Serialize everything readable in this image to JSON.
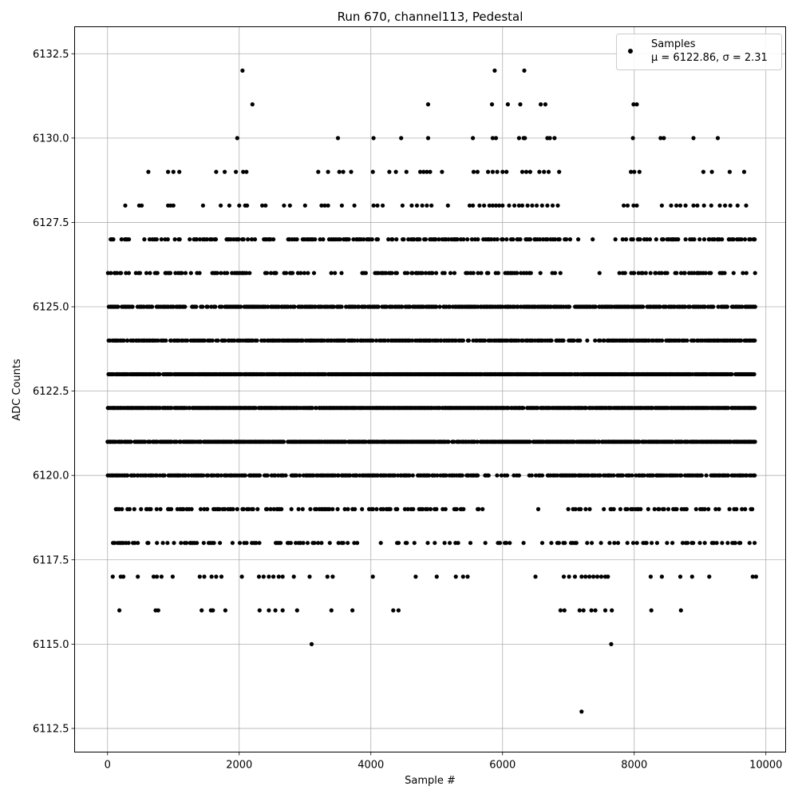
{
  "chart_data": {
    "type": "scatter",
    "title": "Run 670, channel113, Pedestal",
    "xlabel": "Sample #",
    "ylabel": "ADC Counts",
    "xlim": [
      -500,
      10300
    ],
    "ylim": [
      6111.8,
      6133.3
    ],
    "x_ticks": [
      0,
      2000,
      4000,
      6000,
      8000,
      10000
    ],
    "x_tick_labels": [
      "0",
      "2000",
      "4000",
      "6000",
      "8000",
      "10000"
    ],
    "y_ticks": [
      6112.5,
      6115.0,
      6117.5,
      6120.0,
      6122.5,
      6125.0,
      6127.5,
      6130.0,
      6132.5
    ],
    "y_tick_labels": [
      "6112.5",
      "6115.0",
      "6117.5",
      "6120.0",
      "6122.5",
      "6125.0",
      "6127.5",
      "6130.0",
      "6132.5"
    ],
    "grid": true,
    "legend_position": "top-right",
    "marker_color": "#000000",
    "n_samples": 9840,
    "series": [
      {
        "name": "Samples",
        "legend_label": "μ = 6122.86, σ = 2.31",
        "mean": 6122.86,
        "sigma": 2.31,
        "points": [
          [
            3100,
            6115
          ],
          [
            7650,
            6115
          ],
          [
            7200,
            6113
          ],
          [
            2050,
            6132
          ],
          [
            5880,
            6132
          ],
          [
            6330,
            6132
          ],
          [
            2200,
            6131
          ],
          [
            4870,
            6131
          ],
          [
            5840,
            6131
          ],
          [
            6080,
            6131
          ],
          [
            6270,
            6131
          ],
          [
            6580,
            6131
          ],
          [
            6650,
            6131
          ],
          [
            7990,
            6131
          ],
          [
            8040,
            6131
          ],
          [
            1970,
            6130
          ],
          [
            3500,
            6130
          ],
          [
            4040,
            6130
          ],
          [
            4460,
            6130
          ],
          [
            4870,
            6130
          ],
          [
            5550,
            6130
          ],
          [
            5850,
            6130
          ],
          [
            5900,
            6130
          ],
          [
            6250,
            6130
          ],
          [
            6320,
            6130
          ],
          [
            6340,
            6130
          ],
          [
            6680,
            6130
          ],
          [
            6720,
            6130
          ],
          [
            6790,
            6130
          ],
          [
            7980,
            6130
          ],
          [
            8400,
            6130
          ],
          [
            8450,
            6130
          ],
          [
            8900,
            6130
          ],
          [
            9270,
            6130
          ],
          [
            620,
            6129
          ],
          [
            920,
            6129
          ],
          [
            1000,
            6129
          ],
          [
            1090,
            6129
          ],
          [
            1650,
            6129
          ],
          [
            1780,
            6129
          ],
          [
            1950,
            6129
          ],
          [
            2060,
            6129
          ],
          [
            2110,
            6129
          ],
          [
            3200,
            6129
          ],
          [
            3350,
            6129
          ],
          [
            3520,
            6129
          ],
          [
            3580,
            6129
          ],
          [
            3700,
            6129
          ],
          [
            4030,
            6129
          ],
          [
            4280,
            6129
          ],
          [
            4380,
            6129
          ],
          [
            4540,
            6129
          ],
          [
            4750,
            6129
          ],
          [
            4800,
            6129
          ],
          [
            4850,
            6129
          ],
          [
            4900,
            6129
          ],
          [
            5080,
            6129
          ],
          [
            5560,
            6129
          ],
          [
            5620,
            6129
          ],
          [
            5780,
            6129
          ],
          [
            5850,
            6129
          ],
          [
            5920,
            6129
          ],
          [
            6000,
            6129
          ],
          [
            6060,
            6129
          ],
          [
            6300,
            6129
          ],
          [
            6360,
            6129
          ],
          [
            6420,
            6129
          ],
          [
            6560,
            6129
          ],
          [
            6630,
            6129
          ],
          [
            6700,
            6129
          ],
          [
            6860,
            6129
          ],
          [
            7950,
            6129
          ],
          [
            8000,
            6129
          ],
          [
            8080,
            6129
          ],
          [
            9050,
            6129
          ],
          [
            9180,
            6129
          ],
          [
            9450,
            6129
          ],
          [
            9670,
            6129
          ],
          [
            270,
            6128
          ],
          [
            480,
            6128
          ],
          [
            520,
            6128
          ],
          [
            920,
            6128
          ],
          [
            960,
            6128
          ],
          [
            1000,
            6128
          ],
          [
            1450,
            6128
          ],
          [
            1720,
            6128
          ],
          [
            1850,
            6128
          ],
          [
            2000,
            6128
          ],
          [
            2090,
            6128
          ],
          [
            2120,
            6128
          ],
          [
            2350,
            6128
          ],
          [
            2400,
            6128
          ],
          [
            2680,
            6128
          ],
          [
            2770,
            6128
          ],
          [
            3000,
            6128
          ],
          [
            3250,
            6128
          ],
          [
            3300,
            6128
          ],
          [
            3350,
            6128
          ],
          [
            3560,
            6128
          ],
          [
            3750,
            6128
          ],
          [
            4040,
            6128
          ],
          [
            4100,
            6128
          ],
          [
            4180,
            6128
          ],
          [
            4480,
            6128
          ],
          [
            4620,
            6128
          ],
          [
            4700,
            6128
          ],
          [
            4780,
            6128
          ],
          [
            4850,
            6128
          ],
          [
            4920,
            6128
          ],
          [
            5170,
            6128
          ],
          [
            5500,
            6128
          ],
          [
            5550,
            6128
          ],
          [
            5650,
            6128
          ],
          [
            5720,
            6128
          ],
          [
            5800,
            6128
          ],
          [
            5850,
            6128
          ],
          [
            5900,
            6128
          ],
          [
            5950,
            6128
          ],
          [
            6000,
            6128
          ],
          [
            6100,
            6128
          ],
          [
            6180,
            6128
          ],
          [
            6250,
            6128
          ],
          [
            6300,
            6128
          ],
          [
            6380,
            6128
          ],
          [
            6450,
            6128
          ],
          [
            6520,
            6128
          ],
          [
            6600,
            6128
          ],
          [
            6680,
            6128
          ],
          [
            6760,
            6128
          ],
          [
            6840,
            6128
          ],
          [
            7840,
            6128
          ],
          [
            7900,
            6128
          ],
          [
            7990,
            6128
          ],
          [
            8040,
            6128
          ],
          [
            8420,
            6128
          ],
          [
            8560,
            6128
          ],
          [
            8640,
            6128
          ],
          [
            8700,
            6128
          ],
          [
            8780,
            6128
          ],
          [
            8900,
            6128
          ],
          [
            8960,
            6128
          ],
          [
            9060,
            6128
          ],
          [
            9170,
            6128
          ],
          [
            9300,
            6128
          ],
          [
            9380,
            6128
          ],
          [
            9460,
            6128
          ],
          [
            9570,
            6128
          ],
          [
            9700,
            6128
          ],
          [
            7200,
            6117
          ],
          [
            7260,
            6117
          ],
          [
            7320,
            6117
          ],
          [
            7380,
            6117
          ],
          [
            7440,
            6117
          ],
          [
            7500,
            6117
          ],
          [
            7560,
            6117
          ],
          [
            7600,
            6117
          ],
          [
            6930,
            6117
          ],
          [
            7010,
            6117
          ],
          [
            7100,
            6117
          ],
          [
            6500,
            6117
          ],
          [
            8250,
            6117
          ],
          [
            8420,
            6117
          ],
          [
            8700,
            6117
          ],
          [
            8880,
            6117
          ],
          [
            9140,
            6117
          ],
          [
            9800,
            6117
          ],
          [
            9850,
            6117
          ],
          [
            80,
            6117
          ],
          [
            200,
            6117
          ],
          [
            240,
            6117
          ],
          [
            460,
            6117
          ],
          [
            700,
            6117
          ],
          [
            750,
            6117
          ],
          [
            820,
            6117
          ],
          [
            990,
            6117
          ],
          [
            1400,
            6117
          ],
          [
            1470,
            6117
          ],
          [
            1580,
            6117
          ],
          [
            1650,
            6117
          ],
          [
            1730,
            6117
          ],
          [
            2040,
            6117
          ],
          [
            2300,
            6117
          ],
          [
            2370,
            6117
          ],
          [
            2450,
            6117
          ],
          [
            2520,
            6117
          ],
          [
            2600,
            6117
          ],
          [
            2660,
            6117
          ],
          [
            2830,
            6117
          ],
          [
            3070,
            6117
          ],
          [
            3340,
            6117
          ],
          [
            3420,
            6117
          ],
          [
            4030,
            6117
          ],
          [
            4680,
            6117
          ],
          [
            5000,
            6117
          ],
          [
            5290,
            6117
          ],
          [
            5400,
            6117
          ],
          [
            5470,
            6117
          ],
          [
            180,
            6116
          ],
          [
            730,
            6116
          ],
          [
            770,
            6116
          ],
          [
            1430,
            6116
          ],
          [
            1570,
            6116
          ],
          [
            1600,
            6116
          ],
          [
            1790,
            6116
          ],
          [
            2310,
            6116
          ],
          [
            2450,
            6116
          ],
          [
            2550,
            6116
          ],
          [
            2660,
            6116
          ],
          [
            2880,
            6116
          ],
          [
            3400,
            6116
          ],
          [
            3720,
            6116
          ],
          [
            4340,
            6116
          ],
          [
            4420,
            6116
          ],
          [
            6880,
            6116
          ],
          [
            6940,
            6116
          ],
          [
            7170,
            6116
          ],
          [
            7230,
            6116
          ],
          [
            7350,
            6116
          ],
          [
            7410,
            6116
          ],
          [
            7560,
            6116
          ],
          [
            7660,
            6116
          ],
          [
            8260,
            6116
          ],
          [
            8710,
            6116
          ]
        ],
        "dense_rows": [
          {
            "y": 6127,
            "step": 22,
            "start": 40,
            "jitter": 18,
            "keep": 0.5,
            "gap_from": 7100,
            "gap_to": 7700,
            "gap_keep": 0.12
          },
          {
            "y": 6126,
            "step": 22,
            "start": 15,
            "jitter": 18,
            "keep": 0.45,
            "gap_from": 6900,
            "gap_to": 7750,
            "gap_keep": 0.05
          },
          {
            "y": 6125,
            "step": 20,
            "start": 20,
            "jitter": 16,
            "keep": 0.8,
            "gap_from": 99999,
            "gap_to": 99999,
            "gap_keep": 1
          },
          {
            "y": 6124,
            "step": 20,
            "start": 10,
            "jitter": 16,
            "keep": 0.8,
            "gap_from": 7180,
            "gap_to": 7450,
            "gap_keep": 0.25
          },
          {
            "y": 6123,
            "step": 18,
            "start": 0,
            "jitter": 14,
            "keep": 0.95,
            "gap_from": 99999,
            "gap_to": 99999,
            "gap_keep": 1
          },
          {
            "y": 6122,
            "step": 18,
            "start": 5,
            "jitter": 14,
            "keep": 0.95,
            "gap_from": 99999,
            "gap_to": 99999,
            "gap_keep": 1
          },
          {
            "y": 6121,
            "step": 18,
            "start": 0,
            "jitter": 14,
            "keep": 0.88,
            "gap_from": 99999,
            "gap_to": 99999,
            "gap_keep": 1
          },
          {
            "y": 6120,
            "step": 20,
            "start": 10,
            "jitter": 16,
            "keep": 0.7,
            "gap_from": 5800,
            "gap_to": 6700,
            "gap_keep": 0.25
          },
          {
            "y": 6119,
            "step": 24,
            "start": 30,
            "jitter": 18,
            "keep": 0.45,
            "gap_from": 5700,
            "gap_to": 6900,
            "gap_keep": 0.04
          },
          {
            "y": 6118,
            "step": 26,
            "start": 0,
            "jitter": 18,
            "keep": 0.42,
            "gap_from": 3800,
            "gap_to": 6800,
            "gap_keep": 0.15
          }
        ]
      }
    ]
  }
}
